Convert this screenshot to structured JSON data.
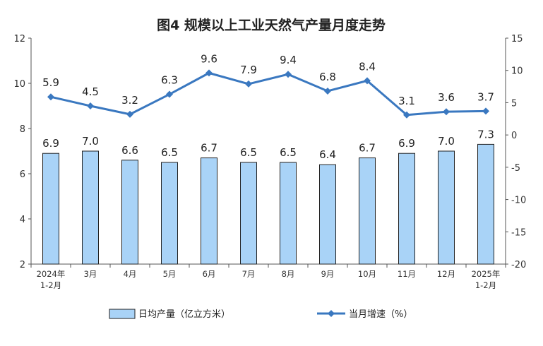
{
  "chart_data": {
    "type": "bar",
    "title": "图4  规模以上工业天然气产量月度走势",
    "categories": [
      [
        "2024年",
        "1-2月"
      ],
      [
        "3月"
      ],
      [
        "4月"
      ],
      [
        "5月"
      ],
      [
        "6月"
      ],
      [
        "7月"
      ],
      [
        "8月"
      ],
      [
        "9月"
      ],
      [
        "10月"
      ],
      [
        "11月"
      ],
      [
        "12月"
      ],
      [
        "2025年",
        "1-2月"
      ]
    ],
    "series": [
      {
        "name": "日均产量（亿立方米）",
        "type": "bar",
        "axis": "left",
        "color": "#a9d3f7",
        "values": [
          6.9,
          7.0,
          6.6,
          6.5,
          6.7,
          6.5,
          6.5,
          6.4,
          6.7,
          6.9,
          7.0,
          7.3
        ],
        "labels": [
          "6.9",
          "7.0",
          "6.6",
          "6.5",
          "6.7",
          "6.5",
          "6.5",
          "6.4",
          "6.7",
          "6.9",
          "7.0",
          "7.3"
        ]
      },
      {
        "name": "当月增速（%）",
        "type": "line",
        "axis": "right",
        "color": "#3a78c0",
        "values": [
          5.9,
          4.5,
          3.2,
          6.3,
          9.6,
          7.9,
          9.4,
          6.8,
          8.4,
          3.1,
          3.6,
          3.7
        ],
        "labels": [
          "5.9",
          "4.5",
          "3.2",
          "6.3",
          "9.6",
          "7.9",
          "9.4",
          "6.8",
          "8.4",
          "3.1",
          "3.6",
          "3.7"
        ]
      }
    ],
    "y_left": {
      "min": 2,
      "max": 12,
      "ticks": [
        "2",
        "4",
        "6",
        "8",
        "10",
        "12"
      ]
    },
    "y_right": {
      "min": -20,
      "max": 15,
      "ticks": [
        "-20",
        "-15",
        "-10",
        "-5",
        "0",
        "5",
        "10",
        "15"
      ]
    },
    "grid": false,
    "legend_position": "bottom"
  }
}
